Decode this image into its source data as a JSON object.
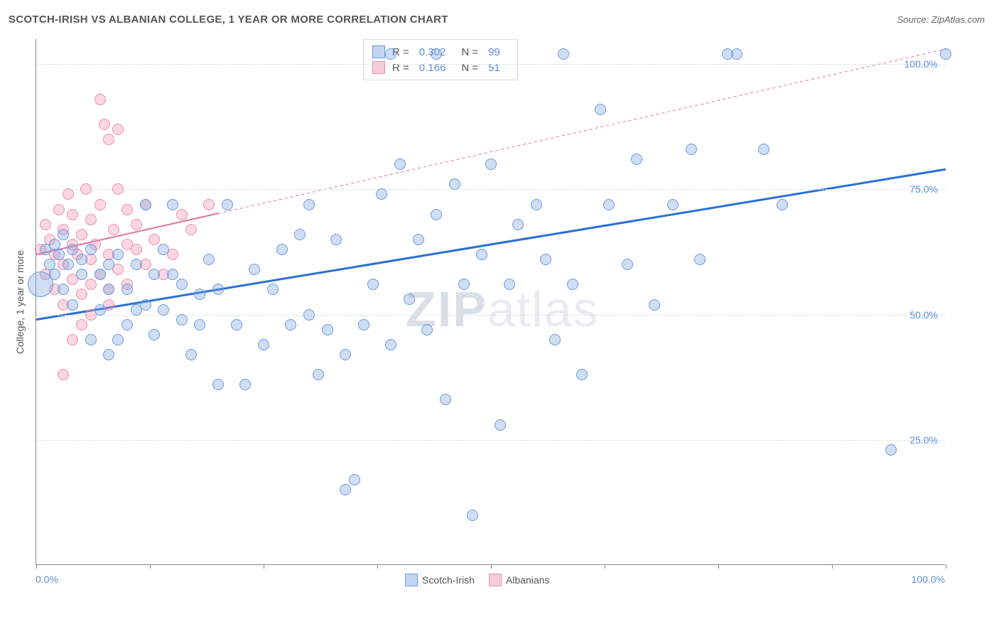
{
  "header": {
    "title": "SCOTCH-IRISH VS ALBANIAN COLLEGE, 1 YEAR OR MORE CORRELATION CHART",
    "source": "Source: ZipAtlas.com"
  },
  "watermark": {
    "prefix": "ZIP",
    "suffix": "atlas"
  },
  "chart": {
    "type": "scatter",
    "background_color": "#ffffff",
    "grid_color": "#dddddd",
    "axis_color": "#888888",
    "tick_label_color": "#5b8dd6",
    "axis_label_color": "#555555",
    "ylabel": "College, 1 year or more",
    "xlim": [
      0,
      100
    ],
    "ylim": [
      0,
      105
    ],
    "xticks": [
      0,
      12.5,
      25,
      37.5,
      50,
      62.5,
      75,
      87.5,
      100
    ],
    "xtick_labels": {
      "0": "0.0%",
      "100": "100.0%"
    },
    "yticks": [
      25,
      50,
      75,
      100
    ],
    "ytick_labels": {
      "25": "25.0%",
      "50": "50.0%",
      "75": "75.0%",
      "100": "100.0%"
    },
    "label_fontsize": 14,
    "point_radius": 8,
    "series": [
      {
        "name": "Scotch-Irish",
        "color_fill": "rgba(120,160,220,0.35)",
        "color_stroke": "#6a9be0",
        "trend_color": "#2a6fd6",
        "trend_width": 3,
        "trend_start": [
          0,
          49
        ],
        "trend_end": [
          100,
          79
        ],
        "R": "0.302",
        "N": "99",
        "points": [
          [
            0.5,
            56,
            18
          ],
          [
            1,
            63
          ],
          [
            1.5,
            60
          ],
          [
            2,
            64
          ],
          [
            2,
            58
          ],
          [
            2.5,
            62
          ],
          [
            3,
            55
          ],
          [
            3,
            66
          ],
          [
            3.5,
            60
          ],
          [
            4,
            63
          ],
          [
            4,
            52
          ],
          [
            5,
            61
          ],
          [
            5,
            58
          ],
          [
            6,
            63
          ],
          [
            6,
            45
          ],
          [
            7,
            51
          ],
          [
            7,
            58
          ],
          [
            8,
            42
          ],
          [
            8,
            60
          ],
          [
            8,
            55
          ],
          [
            9,
            45
          ],
          [
            9,
            62
          ],
          [
            10,
            55
          ],
          [
            10,
            48
          ],
          [
            11,
            60
          ],
          [
            11,
            51
          ],
          [
            12,
            52
          ],
          [
            12,
            72
          ],
          [
            13,
            46
          ],
          [
            13,
            58
          ],
          [
            14,
            51
          ],
          [
            14,
            63
          ],
          [
            15,
            58
          ],
          [
            15,
            72
          ],
          [
            16,
            49
          ],
          [
            16,
            56
          ],
          [
            17,
            42
          ],
          [
            18,
            54
          ],
          [
            18,
            48
          ],
          [
            19,
            61
          ],
          [
            20,
            36
          ],
          [
            20,
            55
          ],
          [
            21,
            72
          ],
          [
            22,
            48
          ],
          [
            23,
            36
          ],
          [
            24,
            59
          ],
          [
            25,
            44
          ],
          [
            26,
            55
          ],
          [
            27,
            63
          ],
          [
            28,
            48
          ],
          [
            29,
            66
          ],
          [
            30,
            72
          ],
          [
            30,
            50
          ],
          [
            31,
            38
          ],
          [
            32,
            47
          ],
          [
            33,
            65
          ],
          [
            34,
            15
          ],
          [
            34,
            42
          ],
          [
            35,
            17
          ],
          [
            36,
            48
          ],
          [
            37,
            56
          ],
          [
            38,
            74
          ],
          [
            39,
            44
          ],
          [
            39,
            102
          ],
          [
            40,
            80
          ],
          [
            41,
            53
          ],
          [
            42,
            65
          ],
          [
            43,
            47
          ],
          [
            44,
            70
          ],
          [
            44,
            102
          ],
          [
            45,
            33
          ],
          [
            46,
            76
          ],
          [
            47,
            56
          ],
          [
            48,
            10
          ],
          [
            49,
            62
          ],
          [
            50,
            80
          ],
          [
            51,
            28
          ],
          [
            52,
            56
          ],
          [
            53,
            68
          ],
          [
            55,
            72
          ],
          [
            56,
            61
          ],
          [
            57,
            45
          ],
          [
            58,
            102
          ],
          [
            59,
            56
          ],
          [
            60,
            38
          ],
          [
            62,
            91
          ],
          [
            63,
            72
          ],
          [
            65,
            60
          ],
          [
            66,
            81
          ],
          [
            68,
            52
          ],
          [
            70,
            72
          ],
          [
            72,
            83
          ],
          [
            73,
            61
          ],
          [
            76,
            102
          ],
          [
            77,
            102
          ],
          [
            80,
            83
          ],
          [
            82,
            72
          ],
          [
            94,
            23
          ],
          [
            100,
            102
          ]
        ]
      },
      {
        "name": "Albanians",
        "color_fill": "rgba(240,140,170,0.35)",
        "color_stroke": "#ec8fb0",
        "trend_color": "#e76f9a",
        "trend_width": 2,
        "trend_dash_after": 20,
        "trend_start": [
          0,
          62
        ],
        "trend_end": [
          100,
          103
        ],
        "R": "0.166",
        "N": "51",
        "points": [
          [
            0.5,
            63
          ],
          [
            1,
            58
          ],
          [
            1,
            68
          ],
          [
            1.5,
            65
          ],
          [
            2,
            55
          ],
          [
            2,
            62
          ],
          [
            2.5,
            71
          ],
          [
            3,
            60
          ],
          [
            3,
            67
          ],
          [
            3,
            52
          ],
          [
            3.5,
            74
          ],
          [
            4,
            64
          ],
          [
            4,
            57
          ],
          [
            4,
            70
          ],
          [
            4.5,
            62
          ],
          [
            5,
            66
          ],
          [
            5,
            54
          ],
          [
            5,
            48
          ],
          [
            5.5,
            75
          ],
          [
            6,
            61
          ],
          [
            6,
            69
          ],
          [
            6,
            56
          ],
          [
            6.5,
            64
          ],
          [
            7,
            93
          ],
          [
            7,
            72
          ],
          [
            7,
            58
          ],
          [
            7.5,
            88
          ],
          [
            8,
            85
          ],
          [
            8,
            62
          ],
          [
            8,
            55
          ],
          [
            8.5,
            67
          ],
          [
            9,
            75
          ],
          [
            9,
            59
          ],
          [
            9,
            87
          ],
          [
            10,
            64
          ],
          [
            10,
            56
          ],
          [
            10,
            71
          ],
          [
            11,
            63
          ],
          [
            11,
            68
          ],
          [
            12,
            60
          ],
          [
            12,
            72
          ],
          [
            13,
            65
          ],
          [
            14,
            58
          ],
          [
            15,
            62
          ],
          [
            16,
            70
          ],
          [
            17,
            67
          ],
          [
            19,
            72
          ],
          [
            3,
            38
          ],
          [
            4,
            45
          ],
          [
            6,
            50
          ],
          [
            8,
            52
          ]
        ]
      }
    ],
    "legend": {
      "items": [
        {
          "label": "Scotch-Irish",
          "fill": "rgba(120,160,220,0.45)",
          "stroke": "#6a9be0"
        },
        {
          "label": "Albanians",
          "fill": "rgba(240,140,170,0.45)",
          "stroke": "#ec8fb0"
        }
      ]
    }
  }
}
